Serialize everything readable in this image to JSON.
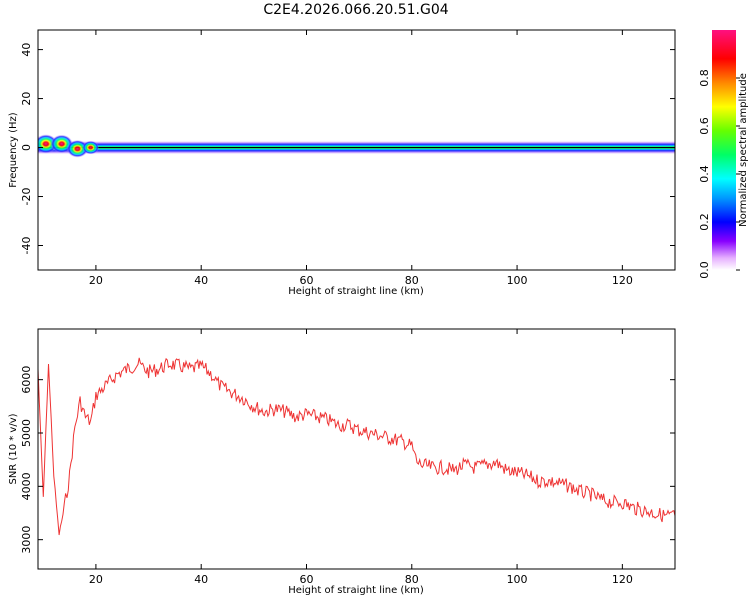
{
  "title": "C2E4.2026.066.20.51.G04",
  "chart_data": [
    {
      "type": "heatmap",
      "xlabel": "Height of straight line (km)",
      "ylabel": "Frequency (Hz)",
      "xlim": [
        9,
        130
      ],
      "ylim": [
        -50,
        48
      ],
      "xticks": [
        20,
        40,
        60,
        80,
        100,
        120
      ],
      "yticks": [
        -40,
        -20,
        0,
        20,
        40
      ],
      "band": {
        "frequency_hz": 0,
        "peak_amplitude": 1.0
      },
      "near_field_blobs": [
        {
          "x": 10.5,
          "y": 1.5,
          "amplitude": 0.95
        },
        {
          "x": 13.5,
          "y": 1.5,
          "amplitude": 0.9
        },
        {
          "x": 16.5,
          "y": -0.5,
          "amplitude": 0.85
        },
        {
          "x": 19,
          "y": 0,
          "amplitude": 0.6
        }
      ],
      "colorbar": {
        "label": "Normalized spectral amplitude",
        "range": [
          0,
          1
        ],
        "ticks": [
          "0.0",
          "0.2",
          "0.4",
          "0.6",
          "0.8"
        ]
      }
    },
    {
      "type": "line",
      "xlabel": "Height of straight line (km)",
      "ylabel": "SNR (10 * v/v)",
      "xlim": [
        9,
        130
      ],
      "ylim": [
        2450,
        6950
      ],
      "xticks": [
        20,
        40,
        60,
        80,
        100,
        120
      ],
      "yticks": [
        3000,
        4000,
        5000,
        6000
      ],
      "color": "#ee3333",
      "series": [
        {
          "x": [
            9,
            10,
            11,
            12,
            13,
            14,
            15,
            16,
            17,
            18,
            19,
            20,
            22,
            24,
            26,
            28,
            30,
            32,
            34,
            36,
            38,
            40,
            42,
            43,
            44,
            46,
            48,
            50,
            52,
            54,
            56,
            58,
            60,
            62,
            64,
            66,
            68,
            70,
            72,
            74,
            76,
            78,
            80,
            81,
            82,
            84,
            86,
            88,
            90,
            92,
            94,
            96,
            98,
            100,
            102,
            104,
            106,
            108,
            110,
            112,
            114,
            116,
            118,
            120,
            122,
            124,
            126,
            128,
            130
          ],
          "y": [
            6200,
            3800,
            6300,
            4200,
            3100,
            3600,
            4200,
            5100,
            5600,
            5300,
            5200,
            5700,
            5900,
            6100,
            6200,
            6300,
            6150,
            6200,
            6300,
            6250,
            6200,
            6250,
            6100,
            5950,
            5850,
            5750,
            5650,
            5500,
            5400,
            5450,
            5400,
            5300,
            5350,
            5300,
            5250,
            5150,
            5150,
            5050,
            5000,
            4950,
            4900,
            4850,
            4750,
            4450,
            4400,
            4350,
            4350,
            4300,
            4400,
            4350,
            4400,
            4450,
            4300,
            4250,
            4200,
            4100,
            4100,
            4050,
            4000,
            3900,
            3850,
            3750,
            3700,
            3700,
            3600,
            3550,
            3500,
            3450,
            3450
          ]
        }
      ]
    }
  ]
}
